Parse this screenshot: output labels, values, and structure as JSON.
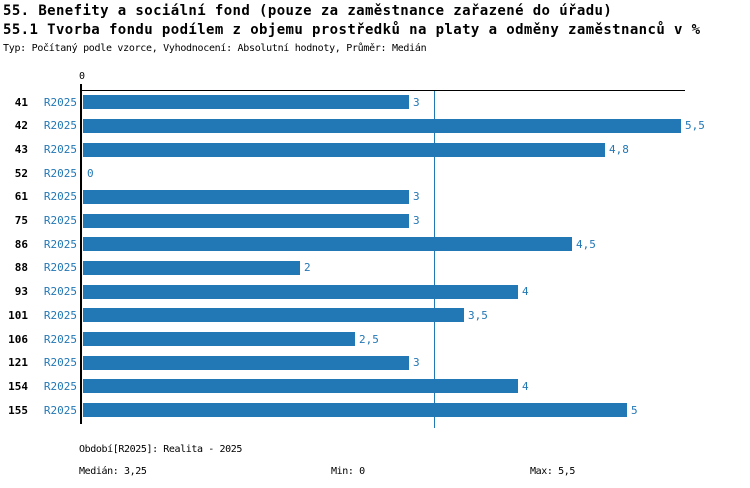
{
  "header": {
    "title1": "55. Benefity a sociální fond (pouze za zaměstnance zařazené do úřadu)",
    "title2": "55.1 Tvorba fondu podílem z objemu prostředků na platy a odměny zaměstnanců v %",
    "meta": "Typ: Počítaný podle vzorce, Vyhodnocení: Absolutní hodnoty, Průměr: Medián"
  },
  "chart_data": {
    "type": "bar",
    "orientation": "horizontal",
    "x_origin_label": "0",
    "series_label": "R2025",
    "categories": [
      "41",
      "42",
      "43",
      "52",
      "61",
      "75",
      "86",
      "88",
      "93",
      "101",
      "106",
      "121",
      "154",
      "155"
    ],
    "values": [
      3,
      5.5,
      4.8,
      0,
      3,
      3,
      4.5,
      2,
      4,
      3.5,
      2.5,
      3,
      4,
      5
    ],
    "value_labels": [
      "3",
      "5,5",
      "4,8",
      "0",
      "3",
      "3",
      "4,5",
      "2",
      "4",
      "3,5",
      "2,5",
      "3",
      "4",
      "5"
    ],
    "xlim": [
      0,
      5.5
    ],
    "median": 3.25,
    "min": 0,
    "max": 5.5,
    "grid": false,
    "bar_color": "#2277b5",
    "label_color": "#2277b5",
    "axis_color": "#000000"
  },
  "footer": {
    "period": "Období[R2025]: Realita - 2025",
    "median": "Medián: 3,25",
    "min": "Min: 0",
    "max": "Max: 5,5"
  }
}
